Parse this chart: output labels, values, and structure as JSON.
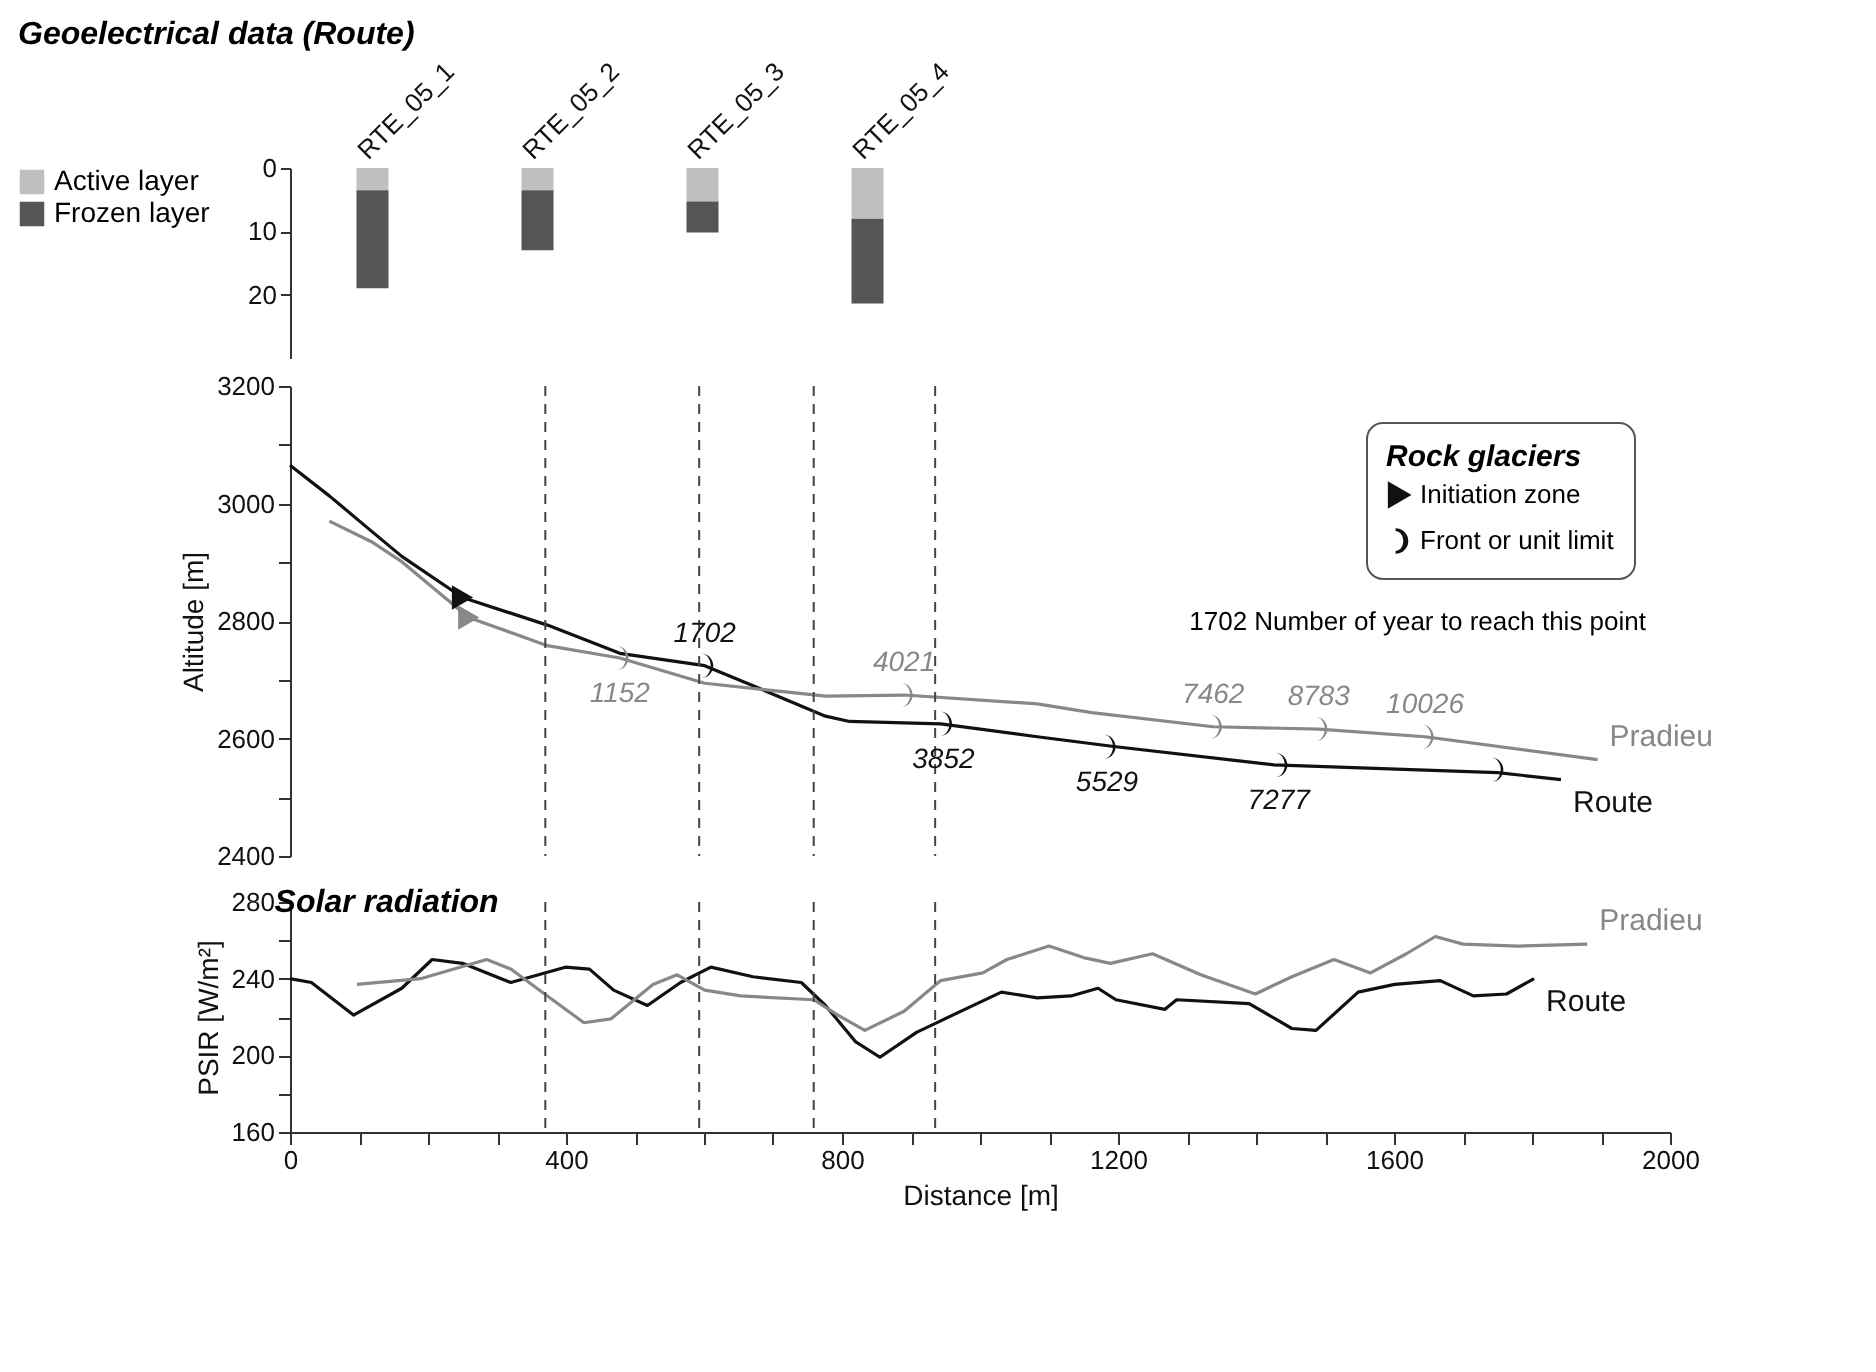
{
  "chart_data": [
    {
      "type": "bar",
      "title": "Geoelectrical data (Route)",
      "stacked": true,
      "legend": "left",
      "categories": [
        "RTE_05_1",
        "RTE_05_2",
        "RTE_05_3",
        "RTE_05_4"
      ],
      "ylim": [
        30,
        0
      ],
      "yticks": [
        0,
        10,
        20
      ],
      "series": [
        {
          "name": "Active layer",
          "color": "#bfbfbf",
          "values": [
            3.5,
            3.5,
            5.3,
            8
          ]
        },
        {
          "name": "Frozen layer",
          "color": "#555555",
          "values": [
            15.5,
            9.5,
            4.9,
            13.4
          ]
        }
      ]
    },
    {
      "type": "line",
      "ylabel": "Altitude [m]",
      "xlim": [
        0,
        2000
      ],
      "ylim": [
        2400,
        3200
      ],
      "yticks": [
        2400,
        {
          "value": 2500,
          "label": null
        },
        2600,
        {
          "value": 2700,
          "label": null
        },
        2800,
        {
          "value": 2900,
          "label": null
        },
        3000,
        {
          "value": 3100,
          "label": null
        },
        3200
      ],
      "tick_labels": "y",
      "legend": "top right",
      "legend_title": "Rock glaciers",
      "annotations": [
        "1702 Number of year to reach this point",
        {
          "text": "1152",
          "x": 478,
          "y": 2737
        },
        {
          "text": "4021",
          "x": 890,
          "y": 2674
        },
        {
          "text": "7462",
          "x": 1338,
          "y": 2620
        },
        {
          "text": "8783",
          "x": 1491,
          "y": 2616
        },
        {
          "text": "10026",
          "x": 1645,
          "y": 2603
        },
        {
          "text": "1702",
          "x": 601,
          "y": 2724
        },
        {
          "text": "3852",
          "x": 947,
          "y": 2625
        },
        {
          "text": "5529",
          "x": 1184,
          "y": 2586
        },
        {
          "text": "7277",
          "x": 1433,
          "y": 2555
        }
      ],
      "ref_lines": [
        {
          "axis": "x",
          "value": 370,
          "line_style": "dashed"
        },
        {
          "axis": "x",
          "value": 593,
          "line_style": "dashed"
        },
        {
          "axis": "x",
          "value": 759,
          "line_style": "dashed"
        },
        {
          "axis": "x",
          "value": 935,
          "line_style": "dashed"
        }
      ],
      "series": [
        {
          "name": "Route",
          "color": "#111111",
          "x": [
            0,
            57,
            118,
            162,
            250,
            373,
            478,
            601,
            689,
            776,
            811,
            943,
            1083,
            1197,
            1426,
            1750,
            1842
          ],
          "values": [
            3065,
            3013,
            2953,
            2910,
            2840,
            2793,
            2745,
            2724,
            2681,
            2638,
            2629,
            2625,
            2603,
            2586,
            2555,
            2542,
            2530
          ]
        },
        {
          "name": "Pradieu",
          "color": "#888888",
          "x": [
            57,
            118,
            162,
            259,
            373,
            478,
            601,
            776,
            890,
            1083,
            1162,
            1338,
            1491,
            1645,
            1895
          ],
          "values": [
            2970,
            2935,
            2901,
            2806,
            2758,
            2737,
            2694,
            2672,
            2674,
            2659,
            2644,
            2620,
            2616,
            2603,
            2564
          ]
        },
        {
          "type": "scatter",
          "name": "Initiation zone",
          "marker": "triangle",
          "x": [
            250,
            259
          ],
          "values": [
            2840,
            2806
          ],
          "colors": [
            "#111111",
            "#888888"
          ]
        },
        {
          "type": "scatter",
          "name": "Front or unit limit",
          "x": [
            478,
            890,
            1338,
            1491,
            1645,
            601,
            947,
            1184,
            1433,
            1746
          ],
          "values": [
            2737,
            2674,
            2620,
            2616,
            2603,
            2724,
            2625,
            2586,
            2555,
            2547
          ],
          "colors": [
            "#888888",
            "#888888",
            "#888888",
            "#888888",
            "#888888",
            "#111111",
            "#111111",
            "#111111",
            "#111111",
            "#111111"
          ]
        }
      ]
    },
    {
      "type": "line",
      "title": "Solar radiation",
      "xlabel": "Distance [m]",
      "ylabel": "PSIR [W/m²]",
      "xlim": [
        0,
        2000
      ],
      "ylim": [
        160,
        280
      ],
      "xticks": [
        0,
        {
          "value": 100,
          "label": null
        },
        {
          "value": 200,
          "label": null
        },
        {
          "value": 300,
          "label": null
        },
        400,
        {
          "value": 500,
          "label": null
        },
        {
          "value": 600,
          "label": null
        },
        {
          "value": 700,
          "label": null
        },
        800,
        {
          "value": 900,
          "label": null
        },
        {
          "value": 1000,
          "label": null
        },
        {
          "value": 1100,
          "label": null
        },
        1200,
        {
          "value": 1300,
          "label": null
        },
        {
          "value": 1400,
          "label": null
        },
        {
          "value": 1500,
          "label": null
        },
        1600,
        {
          "value": 1700,
          "label": null
        },
        {
          "value": 1800,
          "label": null
        },
        {
          "value": 1900,
          "label": null
        },
        2000
      ],
      "yticks": [
        160,
        {
          "value": 180,
          "label": null
        },
        200,
        {
          "value": 220,
          "label": null
        },
        240,
        {
          "value": 260,
          "label": null
        },
        280
      ],
      "ref_lines": [
        {
          "axis": "x",
          "value": 370,
          "line_style": "dashed"
        },
        {
          "axis": "x",
          "value": 593,
          "line_style": "dashed"
        },
        {
          "axis": "x",
          "value": 759,
          "line_style": "dashed"
        },
        {
          "axis": "x",
          "value": 935,
          "line_style": "dashed"
        }
      ],
      "series": [
        {
          "name": "Route",
          "color": "#111111",
          "x": [
            0,
            31,
            92,
            162,
            206,
            250,
            320,
            399,
            434,
            469,
            518,
            566,
            610,
            671,
            741,
            776,
            820,
            855,
            908,
            943,
            978,
            1031,
            1083,
            1132,
            1171,
            1197,
            1268,
            1285,
            1390,
            1452,
            1487,
            1548,
            1601,
            1667,
            1715,
            1763,
            1803
          ],
          "values": [
            240,
            238,
            221,
            235,
            250,
            248,
            238,
            246,
            245,
            234,
            226,
            238,
            246,
            241,
            238,
            226,
            207,
            199,
            212,
            218,
            224,
            233,
            230,
            231,
            235,
            229,
            224,
            229,
            227,
            214,
            213,
            233,
            237,
            239,
            231,
            232,
            240
          ]
        },
        {
          "name": "Pradieu",
          "color": "#888888",
          "x": [
            97,
            189,
            285,
            320,
            373,
            426,
            465,
            526,
            561,
            601,
            653,
            759,
            794,
            833,
            890,
            943,
            1004,
            1039,
            1100,
            1150,
            1189,
            1250,
            1320,
            1399,
            1452,
            1513,
            1566,
            1618,
            1660,
            1700,
            1780,
            1880
          ],
          "values": [
            237,
            240,
            250,
            245,
            231,
            217,
            219,
            237,
            242,
            234,
            231,
            229,
            221,
            213,
            223,
            239,
            243,
            250,
            257,
            251,
            248,
            253,
            242,
            232,
            241,
            250,
            243,
            253,
            262,
            258,
            257,
            258
          ]
        }
      ]
    }
  ]
}
